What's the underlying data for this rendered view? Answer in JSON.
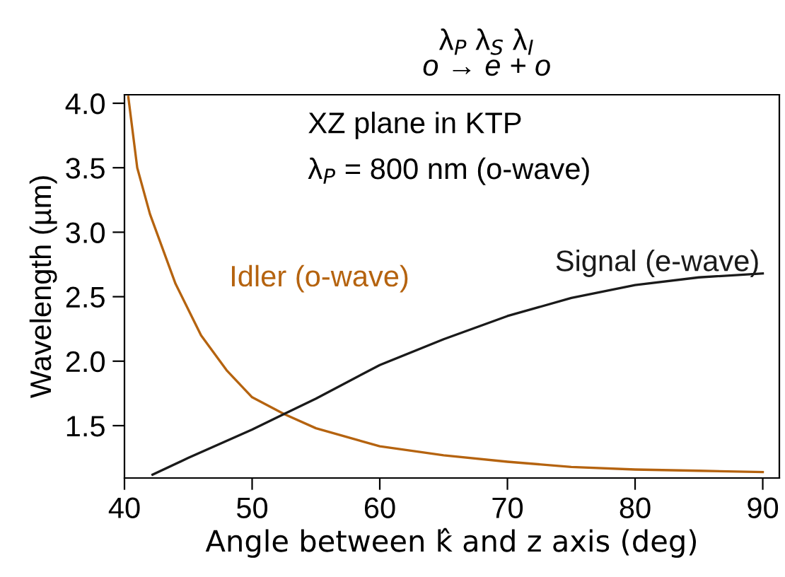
{
  "chart_data": {
    "type": "line",
    "xlabel": "Angle between k̂ and z axis (deg)",
    "ylabel": "Wavelength (µm)",
    "xlim": [
      40,
      91.3
    ],
    "ylim": [
      1.094,
      4.066
    ],
    "xticks": [
      40,
      50,
      60,
      70,
      80,
      90
    ],
    "yticks": [
      1.5,
      {
        "value": 2,
        "label": "2.0"
      },
      2.5,
      {
        "value": 3,
        "label": "3.0"
      },
      3.5,
      {
        "value": 4,
        "label": "4.0"
      }
    ],
    "grid": false,
    "legend": false,
    "marker": "none",
    "line_style": "solid",
    "annotations": [
      "λ$_{P}$ λ$_{S}$ λ$_{I}$",
      "o → e + o",
      "XZ plane in KTP",
      "λ$_{P}$ = 800 nm (o-wave)"
    ],
    "series": [
      {
        "name": "Idler (o-wave)",
        "color": "#b5630f",
        "x": [
          40.3,
          41,
          42,
          44,
          46,
          48,
          50,
          52.5,
          55,
          60,
          65,
          70,
          75,
          80,
          85,
          90
        ],
        "values": [
          4.05,
          3.5,
          3.14,
          2.6,
          2.2,
          1.93,
          1.72,
          1.59,
          1.48,
          1.34,
          1.27,
          1.22,
          1.18,
          1.16,
          1.15,
          1.14
        ]
      },
      {
        "name": "Signal (e-wave)",
        "color": "#1a1a1a",
        "x": [
          42.2,
          45,
          50,
          52.5,
          55,
          60,
          65,
          70,
          75,
          80,
          85,
          90
        ],
        "values": [
          1.12,
          1.25,
          1.47,
          1.59,
          1.71,
          1.97,
          2.17,
          2.35,
          2.49,
          2.59,
          2.65,
          2.68
        ]
      }
    ]
  }
}
